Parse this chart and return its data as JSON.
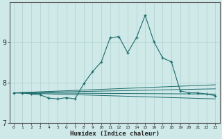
{
  "xlabel": "Humidex (Indice chaleur)",
  "ylabel": "",
  "xlim": [
    -0.5,
    23.5
  ],
  "ylim": [
    7,
    10
  ],
  "yticks": [
    7,
    8,
    9
  ],
  "xticks": [
    0,
    1,
    2,
    3,
    4,
    5,
    6,
    7,
    8,
    9,
    10,
    11,
    12,
    13,
    14,
    15,
    16,
    17,
    18,
    19,
    20,
    21,
    22,
    23
  ],
  "background_color": "#cfe8e8",
  "grid_color": "#afd0d0",
  "line_color": "#1a6b6b",
  "series": {
    "main": {
      "x": [
        0,
        1,
        2,
        3,
        4,
        5,
        6,
        7,
        8,
        9,
        10,
        11,
        12,
        13,
        14,
        15,
        16,
        17,
        18,
        19,
        20,
        21,
        22,
        23
      ],
      "y": [
        7.75,
        7.75,
        7.72,
        7.7,
        7.62,
        7.6,
        7.63,
        7.6,
        7.98,
        8.28,
        8.52,
        9.12,
        9.15,
        8.75,
        9.12,
        9.68,
        9.02,
        8.62,
        8.52,
        7.8,
        7.75,
        7.75,
        7.72,
        7.68
      ]
    },
    "flat_bottom": {
      "x": [
        0,
        23
      ],
      "y": [
        7.75,
        7.6
      ]
    },
    "flat_mid1": {
      "x": [
        0,
        23
      ],
      "y": [
        7.75,
        7.72
      ]
    },
    "trend_up1": {
      "x": [
        0,
        23
      ],
      "y": [
        7.75,
        7.85
      ]
    },
    "trend_up2": {
      "x": [
        0,
        23
      ],
      "y": [
        7.75,
        7.95
      ]
    }
  }
}
